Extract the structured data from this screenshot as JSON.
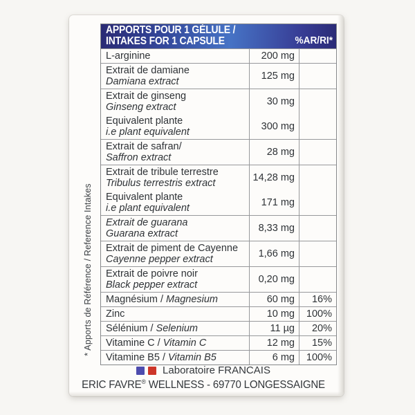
{
  "colors": {
    "header_gradient_left": "#2a2a74",
    "header_gradient_mid": "#4673c5",
    "header_gradient_right": "#2b2b76",
    "flag_blue": "#4d4cae",
    "flag_red": "#cd3629",
    "table_border": "#97989b",
    "text": "#2e3236"
  },
  "header": {
    "title_fr": "APPORTS POUR 1 GÉLULE /",
    "title_en": "INTAKES FOR 1 CAPSULE",
    "ri_column": "%AR/RI*"
  },
  "table": {
    "rows": [
      {
        "ri": "",
        "blocks": [
          {
            "amount": "200 mg",
            "lines": [
              [
                {
                  "t": "L-arginine",
                  "i": false
                }
              ]
            ]
          }
        ]
      },
      {
        "ri": "",
        "blocks": [
          {
            "amount": "125 mg",
            "lines": [
              [
                {
                  "t": "Extrait de damiane",
                  "i": false
                }
              ],
              [
                {
                  "t": "Damiana extract",
                  "i": true
                }
              ]
            ]
          }
        ]
      },
      {
        "ri": "",
        "blocks": [
          {
            "amount": "30 mg",
            "lines": [
              [
                {
                  "t": "Extrait de ginseng",
                  "i": false
                }
              ],
              [
                {
                  "t": "Ginseng extract",
                  "i": true
                }
              ]
            ]
          },
          {
            "amount": "300 mg",
            "lines": [
              [
                {
                  "t": "Equivalent plante",
                  "i": false
                }
              ],
              [
                {
                  "t": "i.e plant equivalent",
                  "i": true
                }
              ]
            ]
          }
        ]
      },
      {
        "ri": "",
        "blocks": [
          {
            "amount": "28 mg",
            "lines": [
              [
                {
                  "t": "Extrait de safran/",
                  "i": false
                }
              ],
              [
                {
                  "t": "Saffron extract",
                  "i": true
                }
              ]
            ]
          }
        ]
      },
      {
        "ri": "",
        "blocks": [
          {
            "amount": "14,28 mg",
            "lines": [
              [
                {
                  "t": "Extrait de tribule terrestre",
                  "i": false
                }
              ],
              [
                {
                  "t": "Tribulus terrestris extract",
                  "i": true
                }
              ]
            ]
          },
          {
            "amount": "171 mg",
            "lines": [
              [
                {
                  "t": "Equivalent plante",
                  "i": false
                }
              ],
              [
                {
                  "t": "i.e plant equivalent",
                  "i": true
                }
              ]
            ]
          }
        ]
      },
      {
        "ri": "",
        "blocks": [
          {
            "amount": "8,33 mg",
            "lines": [
              [
                {
                  "t": "Extrait de guarana",
                  "i": true
                }
              ],
              [
                {
                  "t": "Guarana extract",
                  "i": true
                }
              ]
            ]
          }
        ]
      },
      {
        "ri": "",
        "blocks": [
          {
            "amount": "1,66 mg",
            "lines": [
              [
                {
                  "t": "Extrait de piment de Cayenne",
                  "i": false
                }
              ],
              [
                {
                  "t": "Cayenne pepper extract",
                  "i": true
                }
              ]
            ]
          }
        ]
      },
      {
        "ri": "",
        "blocks": [
          {
            "amount": "0,20 mg",
            "lines": [
              [
                {
                  "t": "Extrait de poivre noir",
                  "i": false
                }
              ],
              [
                {
                  "t": "Black pepper extract",
                  "i": true
                }
              ]
            ]
          }
        ]
      },
      {
        "ri": "16%",
        "blocks": [
          {
            "amount": "60 mg",
            "lines": [
              [
                {
                  "t": "Magnésium / ",
                  "i": false
                },
                {
                  "t": "Magnesium",
                  "i": true
                }
              ]
            ]
          }
        ]
      },
      {
        "ri": "100%",
        "blocks": [
          {
            "amount": "10 mg",
            "lines": [
              [
                {
                  "t": "Zinc",
                  "i": false
                }
              ]
            ]
          }
        ]
      },
      {
        "ri": "20%",
        "blocks": [
          {
            "amount": "11 µg",
            "lines": [
              [
                {
                  "t": "Sélénium / ",
                  "i": false
                },
                {
                  "t": "Selenium",
                  "i": true
                }
              ]
            ]
          }
        ]
      },
      {
        "ri": "15%",
        "blocks": [
          {
            "amount": "12 mg",
            "lines": [
              [
                {
                  "t": "Vitamine C / ",
                  "i": false
                },
                {
                  "t": "Vitamin C",
                  "i": true
                }
              ]
            ]
          }
        ]
      },
      {
        "ri": "100%",
        "blocks": [
          {
            "amount": "6 mg",
            "lines": [
              [
                {
                  "t": "Vitamine B5 / ",
                  "i": false
                },
                {
                  "t": "Vitamin B5",
                  "i": true
                }
              ]
            ]
          }
        ]
      }
    ]
  },
  "side_note": "* Apports de Référence / Reference Intakes",
  "footer": {
    "lab": "Laboratoire FRANCAIS",
    "brand": "ERIC FAVRE",
    "reg_mark": "®",
    "address_rest": " WELLNESS - 69770 LONGESSAIGNE"
  }
}
